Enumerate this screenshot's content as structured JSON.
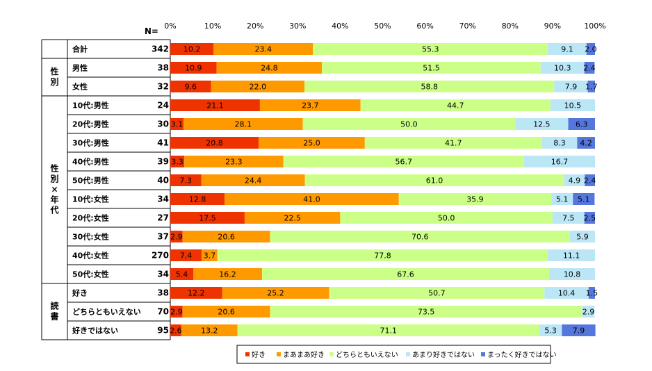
{
  "chart_data": {
    "type": "bar",
    "orientation": "horizontal",
    "stacked": "percent",
    "n_header": "N=",
    "x_ticks": [
      "0%",
      "10%",
      "20%",
      "30%",
      "40%",
      "50%",
      "60%",
      "70%",
      "80%",
      "90%",
      "100%"
    ],
    "xlim": [
      0,
      100
    ],
    "legend_position": "bottom",
    "series": [
      {
        "name": "好き",
        "color": "#ee3300"
      },
      {
        "name": "まあまあ好き",
        "color": "#ff9900"
      },
      {
        "name": "どちらともいえない",
        "color": "#ccff88"
      },
      {
        "name": "あまり好きではない",
        "color": "#bbe6f6"
      },
      {
        "name": "まったく好きではない",
        "color": "#5577dd"
      }
    ],
    "groups": [
      {
        "label": "",
        "rows": [
          0
        ]
      },
      {
        "label": "性別",
        "rows": [
          1,
          2
        ]
      },
      {
        "label": "性別×年代",
        "rows": [
          3,
          4,
          5,
          6,
          7,
          8,
          9,
          10,
          11,
          12
        ]
      },
      {
        "label": "読書",
        "rows": [
          13,
          14,
          15
        ]
      }
    ],
    "rows": [
      {
        "label": "合計",
        "n": "342",
        "values": [
          10.2,
          23.4,
          55.3,
          9.1,
          2.0
        ],
        "labels": [
          "10.2",
          "23.4",
          "55.3",
          "9.1",
          "2.0"
        ]
      },
      {
        "label": "男性",
        "n": "38",
        "values": [
          10.9,
          24.8,
          51.5,
          10.3,
          2.4
        ],
        "labels": [
          "10.9",
          "24.8",
          "51.5",
          "10.3",
          "2.4"
        ]
      },
      {
        "label": "女性",
        "n": "32",
        "values": [
          9.6,
          22.0,
          58.8,
          7.9,
          1.7
        ],
        "labels": [
          "9.6",
          "22.0",
          "58.8",
          "7.9",
          "1.7"
        ]
      },
      {
        "label": "10代:男性",
        "n": "24",
        "values": [
          21.1,
          23.7,
          44.7,
          10.5,
          0
        ],
        "labels": [
          "21.1",
          "23.7",
          "44.7",
          "10.5",
          ""
        ]
      },
      {
        "label": "20代:男性",
        "n": "30",
        "values": [
          3.1,
          28.1,
          50.0,
          12.5,
          6.3
        ],
        "labels": [
          "3.1",
          "28.1",
          "50.0",
          "12.5",
          "6.3"
        ]
      },
      {
        "label": "30代:男性",
        "n": "41",
        "values": [
          20.8,
          25.0,
          41.7,
          8.3,
          4.2
        ],
        "labels": [
          "20.8",
          "25.0",
          "41.7",
          "8.3",
          "4.2"
        ]
      },
      {
        "label": "40代:男性",
        "n": "39",
        "values": [
          3.3,
          23.3,
          56.7,
          16.7,
          0
        ],
        "labels": [
          "3.3",
          "23.3",
          "56.7",
          "16.7",
          ""
        ]
      },
      {
        "label": "50代:男性",
        "n": "40",
        "values": [
          7.3,
          24.4,
          61.0,
          4.9,
          2.4
        ],
        "labels": [
          "7.3",
          "24.4",
          "61.0",
          "4.9",
          "2.4"
        ]
      },
      {
        "label": "10代:女性",
        "n": "34",
        "values": [
          12.8,
          41.0,
          35.9,
          5.1,
          5.1
        ],
        "labels": [
          "12.8",
          "41.0",
          "35.9",
          "5.1",
          "5.1"
        ]
      },
      {
        "label": "20代:女性",
        "n": "27",
        "values": [
          17.5,
          22.5,
          50.0,
          7.5,
          2.5
        ],
        "labels": [
          "17.5",
          "22.5",
          "50.0",
          "7.5",
          "2.5"
        ]
      },
      {
        "label": "30代:女性",
        "n": "37",
        "values": [
          2.9,
          20.6,
          70.6,
          5.9,
          0
        ],
        "labels": [
          "2.9",
          "20.6",
          "70.6",
          "5.9",
          ""
        ]
      },
      {
        "label": "40代:女性",
        "n": "270",
        "values": [
          7.4,
          3.7,
          77.8,
          11.1,
          0
        ],
        "labels": [
          "7.4",
          "3.7",
          "77.8",
          "11.1",
          ""
        ]
      },
      {
        "label": "50代:女性",
        "n": "34",
        "values": [
          5.4,
          16.2,
          67.6,
          10.8,
          0
        ],
        "labels": [
          "5.4",
          "16.2",
          "67.6",
          "10.8",
          ""
        ]
      },
      {
        "label": "好き",
        "n": "38",
        "values": [
          12.2,
          25.2,
          50.7,
          10.4,
          1.5
        ],
        "labels": [
          "12.2",
          "25.2",
          "50.7",
          "10.4",
          "1.5"
        ]
      },
      {
        "label": "どちらともいえない",
        "n": "70",
        "values": [
          2.9,
          20.6,
          73.5,
          2.9,
          0
        ],
        "labels": [
          "2.9",
          "20.6",
          "73.5",
          "2.9",
          ""
        ]
      },
      {
        "label": "好きではない",
        "n": "95",
        "values": [
          2.6,
          13.2,
          71.1,
          5.3,
          7.9
        ],
        "labels": [
          "2.6",
          "13.2",
          "71.1",
          "5.3",
          "7.9"
        ]
      }
    ]
  }
}
